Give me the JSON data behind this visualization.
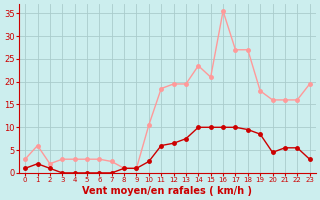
{
  "x": [
    0,
    1,
    2,
    3,
    4,
    5,
    6,
    7,
    8,
    9,
    10,
    11,
    12,
    13,
    14,
    15,
    16,
    17,
    18,
    19,
    20,
    21,
    22,
    23
  ],
  "wind_avg": [
    1,
    2,
    1,
    0,
    0,
    0,
    0,
    0,
    1,
    1,
    2.5,
    6,
    6.5,
    7.5,
    10,
    10,
    10,
    10,
    9.5,
    8.5,
    4.5,
    5.5,
    5.5,
    3
  ],
  "wind_gust": [
    3,
    6,
    2,
    3,
    3,
    3,
    3,
    2.5,
    1,
    1,
    10.5,
    18.5,
    19.5,
    19.5,
    23.5,
    21,
    35.5,
    27,
    27,
    18,
    16,
    16,
    16,
    19.5
  ],
  "wind_avg_color": "#cc0000",
  "wind_gust_color": "#ff9999",
  "bg_color": "#cceeee",
  "grid_color": "#aacccc",
  "axis_color": "#cc0000",
  "xlabel": "Vent moyen/en rafales ( km/h )",
  "ylim": [
    0,
    37
  ],
  "xlim": [
    -0.5,
    23.5
  ],
  "yticks": [
    0,
    5,
    10,
    15,
    20,
    25,
    30,
    35
  ],
  "xticks": [
    0,
    1,
    2,
    3,
    4,
    5,
    6,
    7,
    8,
    9,
    10,
    11,
    12,
    13,
    14,
    15,
    16,
    17,
    18,
    19,
    20,
    21,
    22,
    23
  ]
}
